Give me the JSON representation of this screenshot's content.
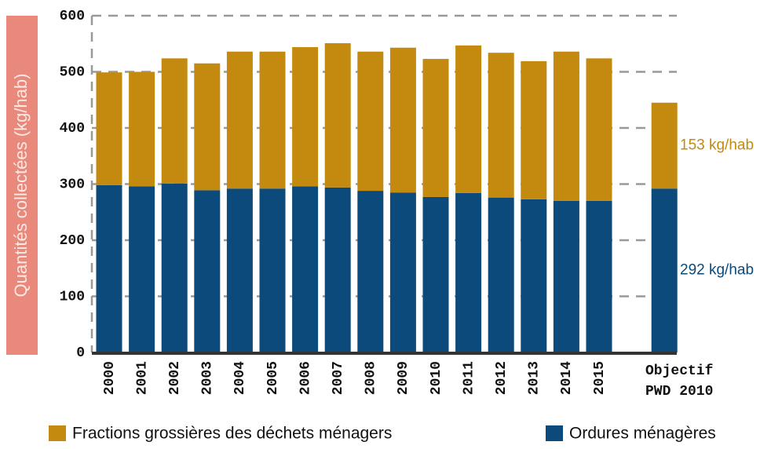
{
  "chart_data": {
    "type": "stacked_bar",
    "y_label": "Quantités collectées (kg/hab)",
    "categories": [
      "2000",
      "2001",
      "2002",
      "2003",
      "2004",
      "2005",
      "2006",
      "2007",
      "2008",
      "2009",
      "2010",
      "2011",
      "2012",
      "2013",
      "2014",
      "2015",
      "Objectif PWD 2010"
    ],
    "series": [
      {
        "name": "Ordures ménagères",
        "color": "#0b4a7a",
        "values": [
          298,
          296,
          301,
          289,
          292,
          292,
          296,
          294,
          288,
          285,
          277,
          284,
          276,
          273,
          270,
          270,
          292
        ],
        "value_labels": [
          null,
          null,
          null,
          null,
          null,
          null,
          null,
          null,
          null,
          null,
          null,
          null,
          null,
          null,
          null,
          null,
          "292 kg/hab"
        ]
      },
      {
        "name": "Fractions grossières des déchets ménagers",
        "color": "#c48a0f",
        "values": [
          201,
          204,
          223,
          226,
          244,
          244,
          248,
          257,
          248,
          258,
          246,
          263,
          258,
          246,
          266,
          254,
          153
        ],
        "value_labels": [
          null,
          null,
          null,
          null,
          null,
          null,
          null,
          null,
          null,
          null,
          null,
          null,
          null,
          null,
          null,
          null,
          "153 kg/hab"
        ]
      }
    ],
    "ylim": [
      0,
      600
    ],
    "yticks": [
      0,
      100,
      200,
      300,
      400,
      500,
      600
    ],
    "grid": true
  }
}
